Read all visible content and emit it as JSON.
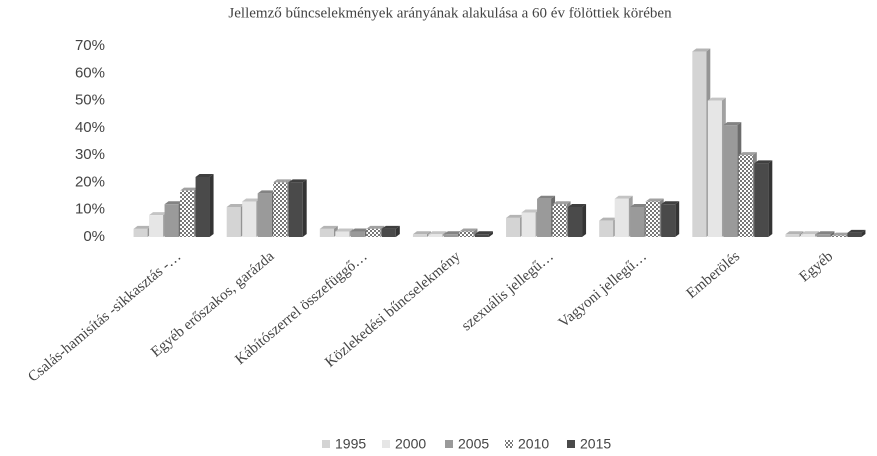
{
  "chart_data": {
    "type": "bar",
    "title": "Jellemző bűncselekmények arányának alakulása a 60 év fölöttiek körében",
    "categories": [
      "Csalás-hamisítás -sikkasztás -…",
      "Egyéb  erőszakos, garázda",
      "Kábítószerrel összefüggő…",
      "Közlekedési bűncselekmény",
      "szexuális jellegű…",
      "Vagyoni jellegű…",
      "Emberölés",
      "Egyéb"
    ],
    "series": [
      {
        "name": "1995",
        "color": "#d4d4d4",
        "values": [
          3,
          11,
          3,
          1,
          7,
          6,
          68,
          1
        ]
      },
      {
        "name": "2000",
        "color": "#e6e6e6",
        "values": [
          8,
          13,
          2,
          1,
          9,
          14,
          50,
          1
        ]
      },
      {
        "name": "2005",
        "color": "#9a9a9a",
        "values": [
          12,
          16,
          2,
          1,
          14,
          11,
          41,
          1
        ]
      },
      {
        "name": "2010",
        "color": "#bdbdbd",
        "pattern": true,
        "values": [
          17,
          20,
          3,
          2,
          12,
          13,
          30,
          0.5
        ]
      },
      {
        "name": "2015",
        "color": "#4a4a4a",
        "values": [
          22,
          20,
          3,
          1,
          11,
          12,
          27,
          1.5
        ]
      }
    ],
    "ylim": [
      0,
      70
    ],
    "yticks": [
      {
        "value": 0,
        "label": "0%"
      },
      {
        "value": 10,
        "label": "10%"
      },
      {
        "value": 20,
        "label": "20%"
      },
      {
        "value": 30,
        "label": "30%"
      },
      {
        "value": 40,
        "label": "40%"
      },
      {
        "value": 50,
        "label": "50%"
      },
      {
        "value": 60,
        "label": "60%"
      },
      {
        "value": 70,
        "label": "70%"
      }
    ],
    "grid": false,
    "legend": "bottom"
  }
}
